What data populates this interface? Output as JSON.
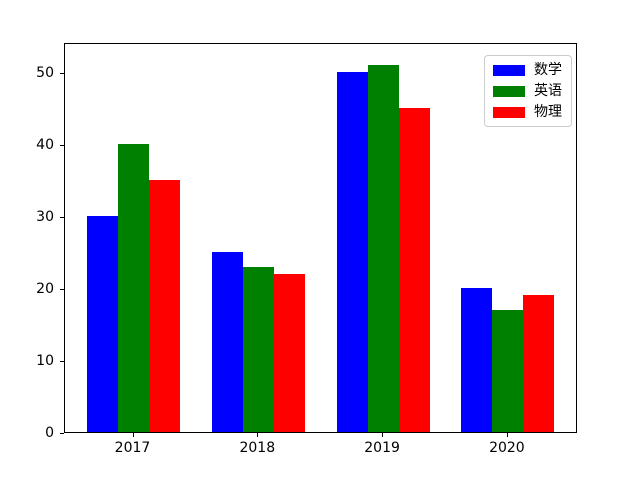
{
  "chart_data": {
    "type": "bar",
    "title": "",
    "xlabel": "",
    "ylabel": "",
    "categories": [
      "2017",
      "2018",
      "2019",
      "2020"
    ],
    "series": [
      {
        "name": "数学",
        "color": "#0000ff",
        "values": [
          30,
          25,
          50,
          20
        ]
      },
      {
        "name": "英语",
        "color": "#008000",
        "values": [
          40,
          23,
          51,
          17
        ]
      },
      {
        "name": "物理",
        "color": "#ff0000",
        "values": [
          35,
          22,
          45,
          19
        ]
      }
    ],
    "yticks": [
      0,
      10,
      20,
      30,
      40,
      50
    ],
    "ylim": [
      0,
      54.2
    ],
    "grid": false,
    "legend_position": "upper right"
  },
  "colors": {
    "axis": "#000000",
    "legend_border": "#cccccc",
    "background": "#ffffff"
  }
}
